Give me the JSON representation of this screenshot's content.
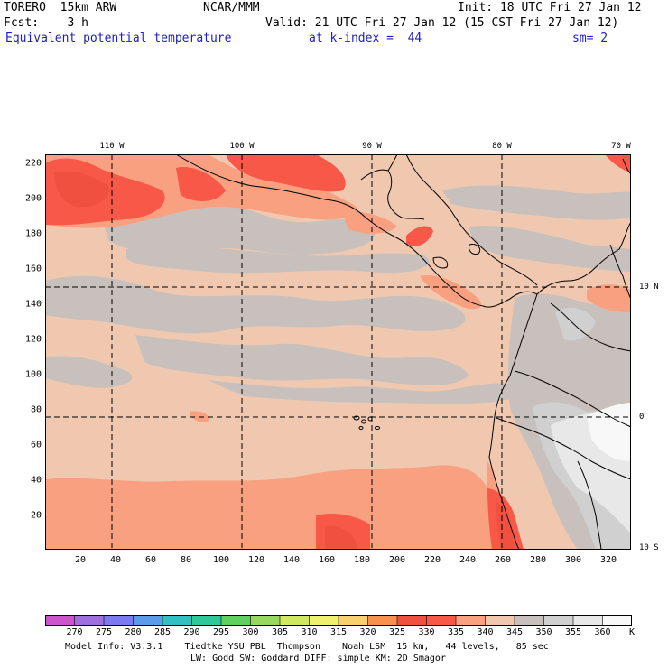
{
  "header": {
    "model": "TORERO  15km ARW",
    "center": "NCAR/MMM",
    "init": "Init: 18 UTC Fri 27 Jan 12",
    "fcst": "Fcst:    3 h",
    "valid": "Valid: 21 UTC Fri 27 Jan 12 (15 CST Fri 27 Jan 12)",
    "field": "Equivalent potential temperature",
    "level": "at k-index =  44",
    "smooth": "sm= 2"
  },
  "map": {
    "x_ticks": [
      "20",
      "40",
      "60",
      "80",
      "100",
      "120",
      "140",
      "160",
      "180",
      "200",
      "220",
      "240",
      "260",
      "280",
      "300",
      "320"
    ],
    "y_ticks": [
      "220",
      "200",
      "180",
      "160",
      "140",
      "120",
      "100",
      "80",
      "60",
      "40",
      "20"
    ],
    "lon_labels": [
      "110 W",
      "100 W",
      "90 W",
      "80 W",
      "70 W"
    ],
    "lat_labels": [
      "10 N",
      "0",
      "10 S"
    ]
  },
  "colorbar": {
    "labels": [
      "270",
      "275",
      "280",
      "285",
      "290",
      "295",
      "300",
      "305",
      "310",
      "315",
      "320",
      "325",
      "330",
      "335",
      "340",
      "345",
      "350",
      "355",
      "360"
    ],
    "unit": "K",
    "colors": [
      "#cc55cc",
      "#9f6fdd",
      "#7b7bef",
      "#5c9be8",
      "#33c0c0",
      "#2ec89a",
      "#60d060",
      "#98d860",
      "#d0e860",
      "#f0f070",
      "#f8d070",
      "#f89050",
      "#f05040",
      "#f85848",
      "#f8a080",
      "#f0c8b0",
      "#c8c0bc",
      "#d0d0d0",
      "#e8e8e8",
      "#f8f8f8"
    ]
  },
  "footer": {
    "line1": "Model Info: V3.3.1    Tiedtke YSU PBL  Thompson    Noah LSM  15 km,   44 levels,   85 sec",
    "line2": "LW: Godd SW: Goddard DIFF: simple KM: 2D Smagor"
  }
}
